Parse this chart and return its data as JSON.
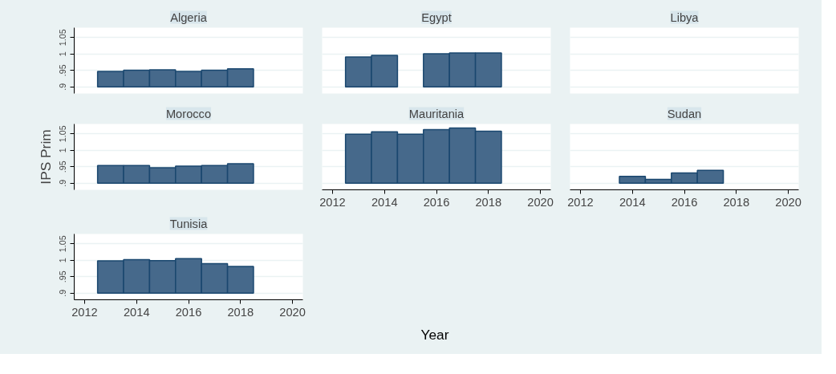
{
  "chart_data": [
    {
      "type": "bar",
      "title": "Algeria",
      "color": "#46698b",
      "x": [
        2013,
        2014,
        2015,
        2016,
        2017,
        2018
      ],
      "base": [
        0.9,
        0.9,
        0.9,
        0.9,
        0.9,
        0.9
      ],
      "values": [
        0.047,
        0.051,
        0.052,
        0.047,
        0.051,
        0.055
      ],
      "xlim": [
        2011.6,
        2020.4
      ],
      "ylim": [
        0.88,
        1.08
      ],
      "xticks": [
        2012,
        2014,
        2016,
        2018,
        2020
      ],
      "yticks": [
        {
          "value": 0.9,
          "label": ".9"
        },
        {
          "value": 0.95,
          "label": ".95"
        },
        {
          "value": 1,
          "label": "1"
        },
        {
          "value": 1.05,
          "label": "1.05"
        }
      ],
      "grid": "y",
      "tick_labels": "y"
    },
    {
      "type": "bar",
      "title": "Egypt",
      "color": "#46698b",
      "x": [
        2013,
        2014,
        2015,
        2016,
        2017,
        2018
      ],
      "base": [
        0.9,
        0.9,
        null,
        0.9,
        0.9,
        0.9
      ],
      "values": [
        0.091,
        0.096,
        null,
        0.101,
        0.103,
        0.103
      ],
      "xlim": [
        2011.6,
        2020.4
      ],
      "ylim": [
        0.88,
        1.08
      ],
      "xticks": [
        2012,
        2014,
        2016,
        2018,
        2020
      ],
      "yticks": [
        0.9,
        0.95,
        1,
        1.05
      ],
      "grid": "y",
      "tick_labels": false
    },
    {
      "type": "bar",
      "title": "Libya",
      "color": "#46698b",
      "xlim": [
        2011.6,
        2020.4
      ],
      "ylim": [
        0.88,
        1.08
      ],
      "xticks": [
        2012,
        2014,
        2016,
        2018,
        2020
      ],
      "yticks": [
        0.9,
        0.95,
        1,
        1.05
      ],
      "grid": "y",
      "tick_labels": false
    },
    {
      "type": "bar",
      "title": "Morocco",
      "ylabel": "IPS Prim",
      "color": "#46698b",
      "x": [
        2013,
        2014,
        2015,
        2016,
        2017,
        2018
      ],
      "base": [
        0.9,
        0.9,
        0.9,
        0.9,
        0.9,
        0.9
      ],
      "values": [
        0.054,
        0.054,
        0.047,
        0.052,
        0.054,
        0.059
      ],
      "xlim": [
        2011.6,
        2020.4
      ],
      "ylim": [
        0.88,
        1.08
      ],
      "xticks": [
        2012,
        2014,
        2016,
        2018,
        2020
      ],
      "yticks": [
        {
          "value": 0.9,
          "label": ".9"
        },
        {
          "value": 0.95,
          "label": ".95"
        },
        {
          "value": 1,
          "label": "1"
        },
        {
          "value": 1.05,
          "label": "1.05"
        }
      ],
      "grid": "y",
      "tick_labels": "y"
    },
    {
      "type": "bar",
      "title": "Mauritania",
      "xlabel": "Year",
      "color": "#46698b",
      "x": [
        2013,
        2014,
        2015,
        2016,
        2017,
        2018
      ],
      "base": [
        0.9,
        0.9,
        0.9,
        0.9,
        0.9,
        0.9
      ],
      "values": [
        0.149,
        0.156,
        0.149,
        0.163,
        0.168,
        0.158
      ],
      "xlim": [
        2011.6,
        2020.4
      ],
      "ylim": [
        0.88,
        1.08
      ],
      "xticks": [
        2012,
        2014,
        2016,
        2018,
        2020
      ],
      "yticks": [
        0.9,
        0.95,
        1,
        1.05
      ],
      "grid": "y",
      "tick_labels": "x"
    },
    {
      "type": "bar",
      "title": "Sudan",
      "color": "#46698b",
      "x": [
        2014,
        2015,
        2016,
        2017
      ],
      "base": [
        0.9,
        0.9,
        0.9,
        0.9
      ],
      "values": [
        0.021,
        0.012,
        0.031,
        0.039
      ],
      "xlim": [
        2011.6,
        2020.4
      ],
      "ylim": [
        0.88,
        1.08
      ],
      "xticks": [
        2012,
        2014,
        2016,
        2018,
        2020
      ],
      "yticks": [
        0.9,
        0.95,
        1,
        1.05
      ],
      "grid": "y",
      "tick_labels": "x"
    },
    {
      "type": "bar",
      "title": "Tunisia",
      "color": "#46698b",
      "x": [
        2013,
        2014,
        2015,
        2016,
        2017,
        2018
      ],
      "base": [
        0.9,
        0.9,
        0.9,
        0.9,
        0.9,
        0.9
      ],
      "values": [
        0.098,
        0.102,
        0.099,
        0.105,
        0.09,
        0.081
      ],
      "xlim": [
        2011.6,
        2020.4
      ],
      "ylim": [
        0.88,
        1.08
      ],
      "xticks": [
        2012,
        2014,
        2016,
        2018,
        2020
      ],
      "yticks": [
        {
          "value": 0.9,
          "label": ".9"
        },
        {
          "value": 0.95,
          "label": ".95"
        },
        {
          "value": 1,
          "label": "1"
        },
        {
          "value": 1.05,
          "label": "1.05"
        }
      ],
      "grid": "y"
    }
  ]
}
